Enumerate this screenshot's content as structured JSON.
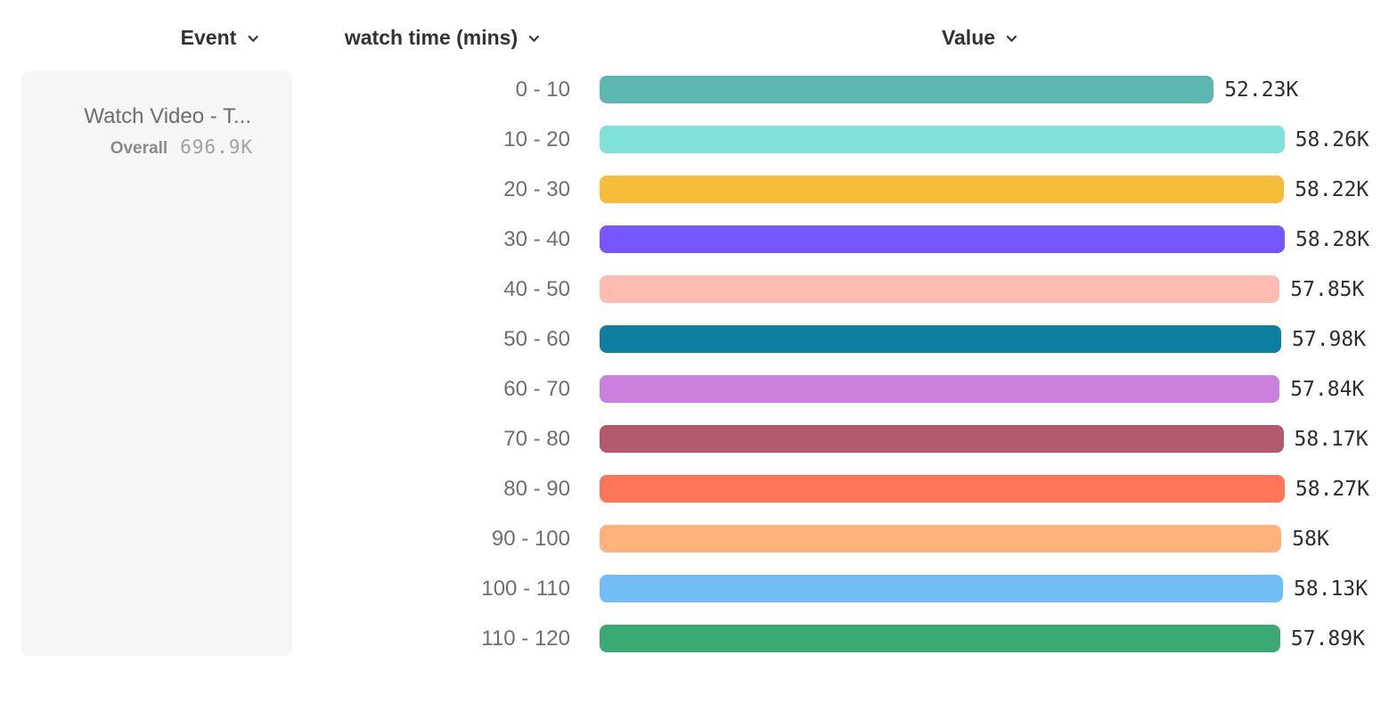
{
  "header": {
    "columns": [
      {
        "label": "Event"
      },
      {
        "label": "watch time (mins)"
      },
      {
        "label": "Value"
      }
    ]
  },
  "event_card": {
    "title": "Watch Video - T...",
    "overall_label": "Overall",
    "overall_value": "696.9K"
  },
  "chart_data": {
    "type": "bar",
    "orientation": "horizontal",
    "title": "",
    "xlabel": "Value",
    "ylabel": "watch time (mins)",
    "xlim": [
      0,
      58280
    ],
    "grid": false,
    "legend": "none",
    "categories": [
      "0 - 10",
      "10 - 20",
      "20 - 30",
      "30 - 40",
      "40 - 50",
      "50 - 60",
      "60 - 70",
      "70 - 80",
      "80 - 90",
      "90 - 100",
      "100 - 110",
      "110 - 120"
    ],
    "values": [
      52230,
      58260,
      58220,
      58280,
      57850,
      57980,
      57840,
      58170,
      58270,
      58000,
      58130,
      57890
    ],
    "value_labels": [
      "52.23K",
      "58.26K",
      "58.22K",
      "58.28K",
      "57.85K",
      "57.98K",
      "57.84K",
      "58.17K",
      "58.27K",
      "58K",
      "58.13K",
      "57.89K"
    ],
    "bar_colors": [
      "#5BB7AF",
      "#80E1D9",
      "#F8BC3B",
      "#7856FF",
      "#FEBBB2",
      "#0D7EA0",
      "#CA80DC",
      "#B2596E",
      "#FF7557",
      "#FFB27A",
      "#72BEF4",
      "#3BA974"
    ]
  },
  "colors": {
    "header_text": "#323232",
    "bin_label_text": "#6f6f6f",
    "value_label_text": "#2e2e2e",
    "card_background": "#f6f6f6",
    "card_title_text": "#6e6e6e"
  },
  "icons": {
    "chevron_down": "chevron-down"
  }
}
